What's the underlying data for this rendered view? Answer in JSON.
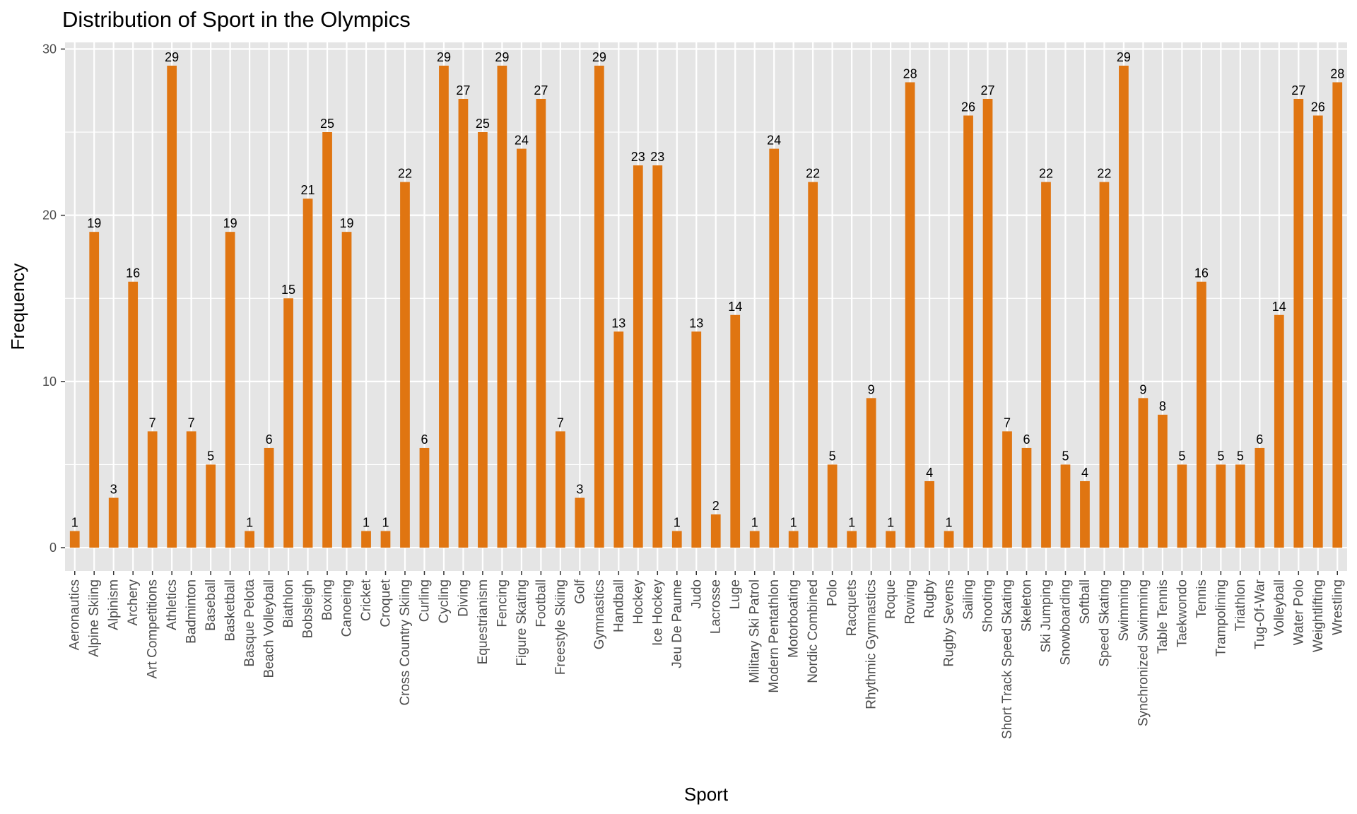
{
  "chart_data": {
    "type": "bar",
    "title": "Distribution of Sport in the Olympics",
    "xlabel": "Sport",
    "ylabel": "Frequency",
    "ylim": [
      -1.4,
      30.4
    ],
    "yticks": [
      0,
      10,
      20,
      30
    ],
    "grid": true,
    "bar_color": "#E07511",
    "panel_color": "#E5E5E5",
    "grid_color": "#FFFFFF",
    "categories": [
      "Aeronautics",
      "Alpine Skiing",
      "Alpinism",
      "Archery",
      "Art Competitions",
      "Athletics",
      "Badminton",
      "Baseball",
      "Basketball",
      "Basque Pelota",
      "Beach Volleyball",
      "Biathlon",
      "Bobsleigh",
      "Boxing",
      "Canoeing",
      "Cricket",
      "Croquet",
      "Cross Country Skiing",
      "Curling",
      "Cycling",
      "Diving",
      "Equestrianism",
      "Fencing",
      "Figure Skating",
      "Football",
      "Freestyle Skiing",
      "Golf",
      "Gymnastics",
      "Handball",
      "Hockey",
      "Ice Hockey",
      "Jeu De Paume",
      "Judo",
      "Lacrosse",
      "Luge",
      "Military Ski Patrol",
      "Modern Pentathlon",
      "Motorboating",
      "Nordic Combined",
      "Polo",
      "Racquets",
      "Rhythmic Gymnastics",
      "Roque",
      "Rowing",
      "Rugby",
      "Rugby Sevens",
      "Sailing",
      "Shooting",
      "Short Track Speed Skating",
      "Skeleton",
      "Ski Jumping",
      "Snowboarding",
      "Softball",
      "Speed Skating",
      "Swimming",
      "Synchronized Swimming",
      "Table Tennis",
      "Taekwondo",
      "Tennis",
      "Trampolining",
      "Triathlon",
      "Tug-Of-War",
      "Volleyball",
      "Water Polo",
      "Weightlifting",
      "Wrestling"
    ],
    "values": [
      1,
      19,
      3,
      16,
      7,
      29,
      7,
      5,
      19,
      1,
      6,
      15,
      21,
      25,
      19,
      1,
      1,
      22,
      6,
      29,
      27,
      25,
      29,
      24,
      27,
      7,
      3,
      29,
      13,
      23,
      23,
      1,
      13,
      2,
      14,
      1,
      24,
      1,
      22,
      5,
      1,
      9,
      1,
      28,
      4,
      1,
      26,
      27,
      7,
      6,
      22,
      5,
      4,
      22,
      29,
      9,
      8,
      5,
      16,
      5,
      5,
      6,
      14,
      27,
      26,
      28
    ]
  }
}
